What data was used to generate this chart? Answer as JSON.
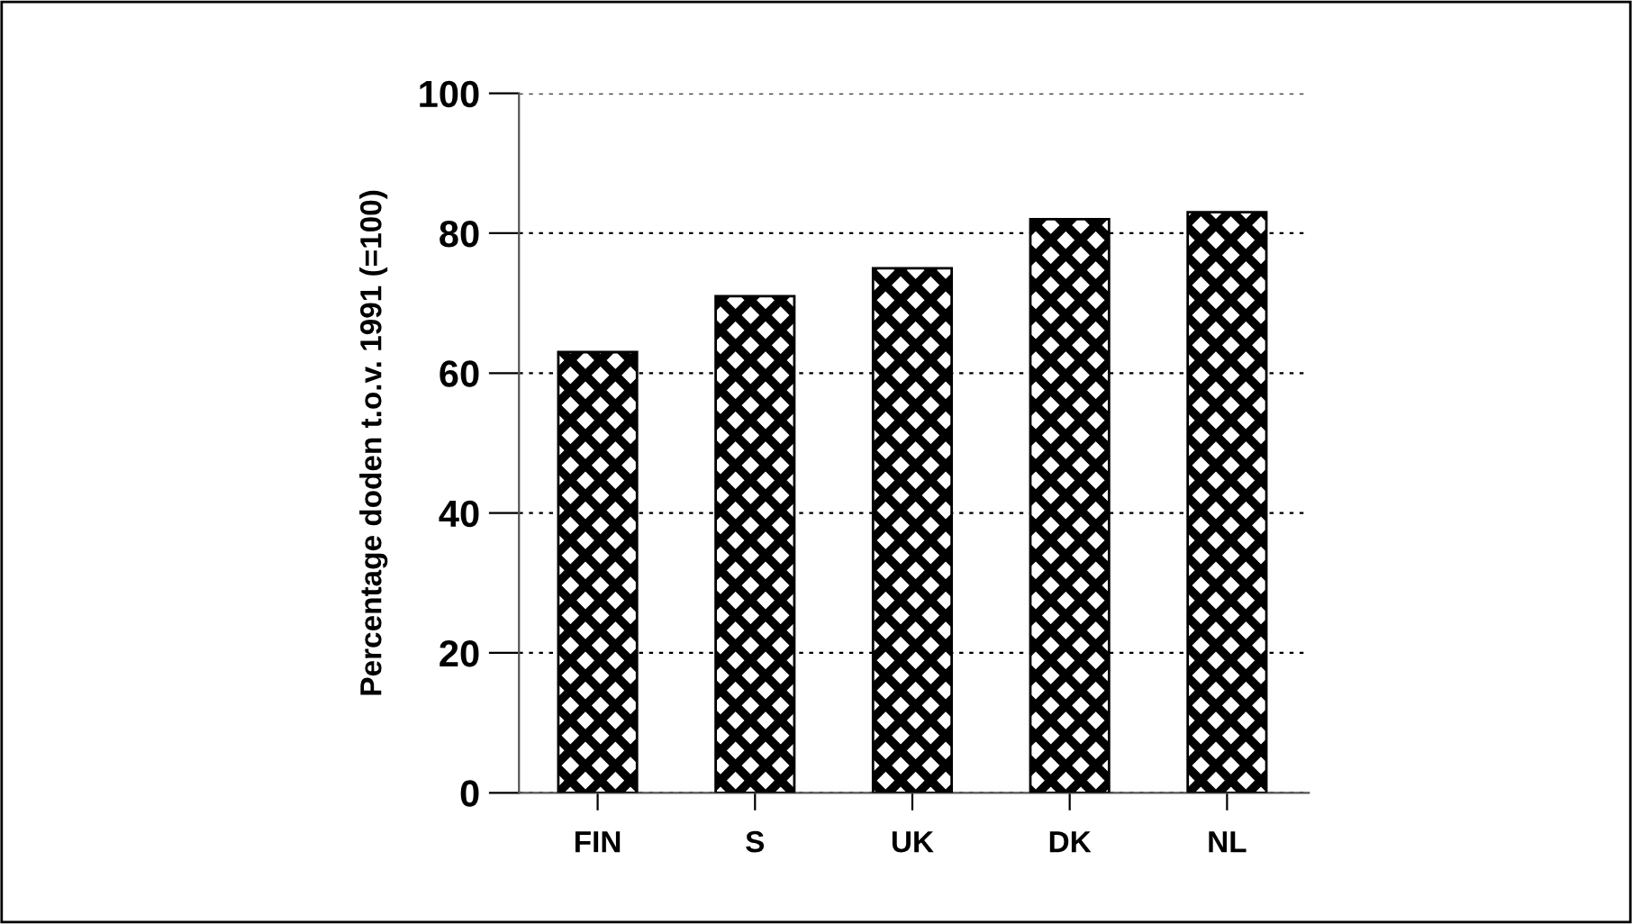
{
  "chart_data": {
    "type": "bar",
    "ylabel": "Percentage doden t.o.v. 1991 (=100)",
    "categories": [
      "FIN",
      "S",
      "UK",
      "DK",
      "NL"
    ],
    "values": [
      63,
      71,
      75,
      82,
      83
    ],
    "color": "#000000",
    "ylim": [
      0,
      100
    ],
    "yticks": [
      0,
      20,
      40,
      60,
      80,
      100
    ],
    "grid": "y"
  }
}
